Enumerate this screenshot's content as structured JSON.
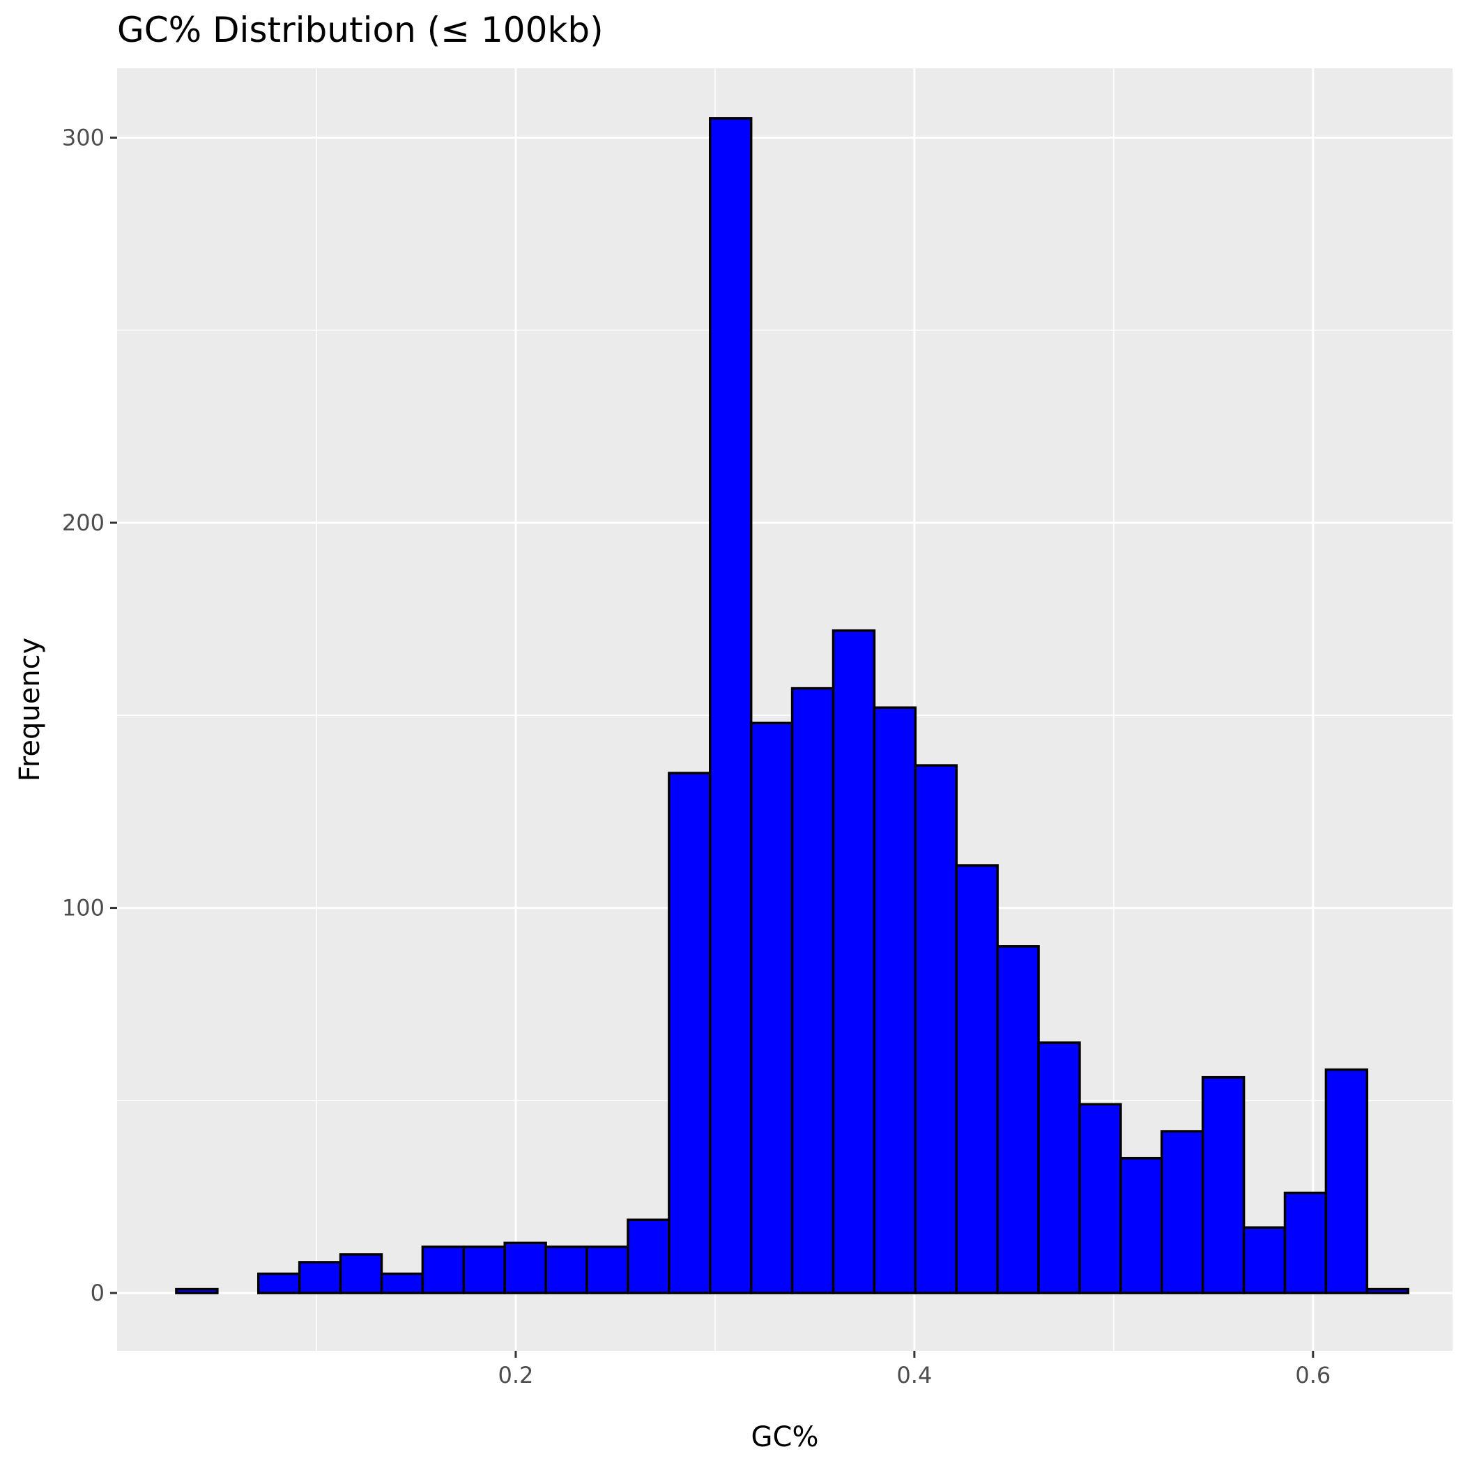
{
  "chart_data": {
    "type": "bar",
    "title": "GC% Distribution (≤ 100kb)",
    "xlabel": "GC%",
    "ylabel": "Frequency",
    "xlim": [
      0.0,
      0.67
    ],
    "ylim": [
      -15,
      318
    ],
    "x_ticks": [
      0.2,
      0.4,
      0.6
    ],
    "x_tick_labels": [
      "0.2",
      "0.4",
      "0.6"
    ],
    "y_ticks": [
      0,
      100,
      200,
      300
    ],
    "y_tick_labels": [
      "0",
      "100",
      "200",
      "300"
    ],
    "grid": true,
    "bin_width": 0.0206,
    "bin_start": 0.0297,
    "values": [
      1,
      0,
      5,
      8,
      10,
      5,
      12,
      12,
      13,
      12,
      12,
      19,
      135,
      305,
      148,
      157,
      172,
      152,
      137,
      111,
      90,
      65,
      49,
      35,
      42,
      56,
      17,
      26,
      58,
      1
    ],
    "colors": {
      "bar_fill": "#0000ff",
      "bar_stroke": "#000000",
      "panel_background": "#ebebeb",
      "grid": "#ffffff",
      "tick_label": "#4d4d4d",
      "tick_mark": "#333333"
    }
  }
}
